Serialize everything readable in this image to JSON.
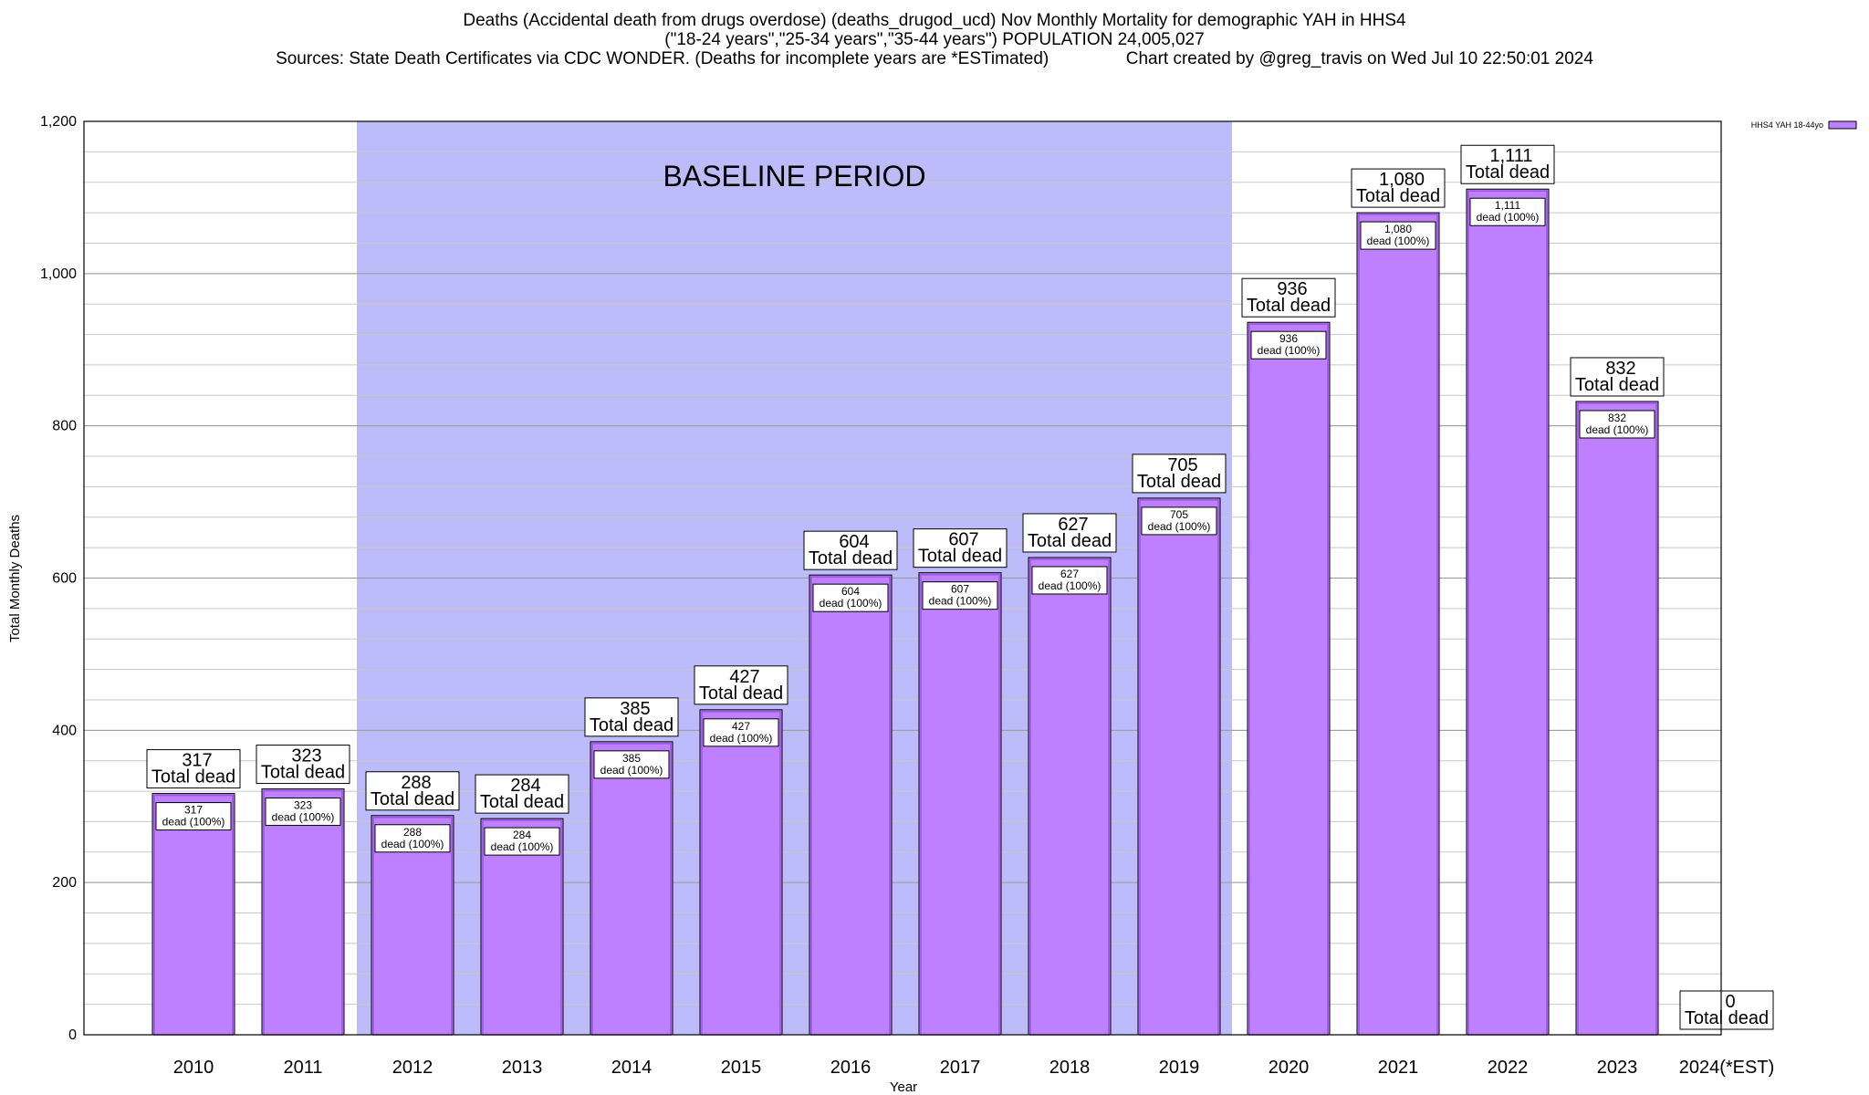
{
  "title": {
    "line1": "Deaths (Accidental death from drugs overdose) (deaths_drugod_ucd) Nov Monthly Mortality for demographic YAH in HHS4",
    "line2": "(\"18-24 years\",\"25-34 years\",\"35-44 years\") POPULATION 24,005,027",
    "line3": "Sources: State Death Certificates via CDC WONDER. (Deaths for incomplete years are *ESTimated)                Chart created by @greg_travis on Wed Jul 10 22:50:01 2024"
  },
  "colors": {
    "bar_fill": "#bf80ff",
    "bar_outer": "#9a55e0",
    "baseline_fill": "#bcbcfa",
    "grid": "#c8c8c8"
  },
  "chart_data": {
    "type": "bar",
    "xlabel": "Year",
    "ylabel": "Total Monthly Deaths",
    "ylim": [
      0,
      1200
    ],
    "yticks": [
      0,
      200,
      400,
      600,
      800,
      1000,
      1200
    ],
    "ytick_labels": [
      "0",
      "200",
      "400",
      "600",
      "800",
      "1,000",
      "1,200"
    ],
    "minor_step": 40,
    "categories": [
      "2010",
      "2011",
      "2012",
      "2013",
      "2014",
      "2015",
      "2016",
      "2017",
      "2018",
      "2019",
      "2020",
      "2021",
      "2022",
      "2023",
      "2024(*EST)"
    ],
    "series": [
      {
        "name": "HHS4 YAH 18-44yo",
        "values": [
          317,
          323,
          288,
          284,
          385,
          427,
          604,
          607,
          627,
          705,
          936,
          1080,
          1111,
          832,
          0
        ]
      }
    ],
    "value_labels": [
      "317",
      "323",
      "288",
      "284",
      "385",
      "427",
      "604",
      "607",
      "627",
      "705",
      "936",
      "1,080",
      "1,111",
      "832",
      "0"
    ],
    "total_label_text": "Total dead",
    "inner_label_text": "dead (100%)",
    "baseline": {
      "label": "BASELINE PERIOD",
      "start_index": 2,
      "end_index": 9
    },
    "legend": {
      "label": "HHS4 YAH 18-44yo",
      "position": "top-right"
    }
  }
}
